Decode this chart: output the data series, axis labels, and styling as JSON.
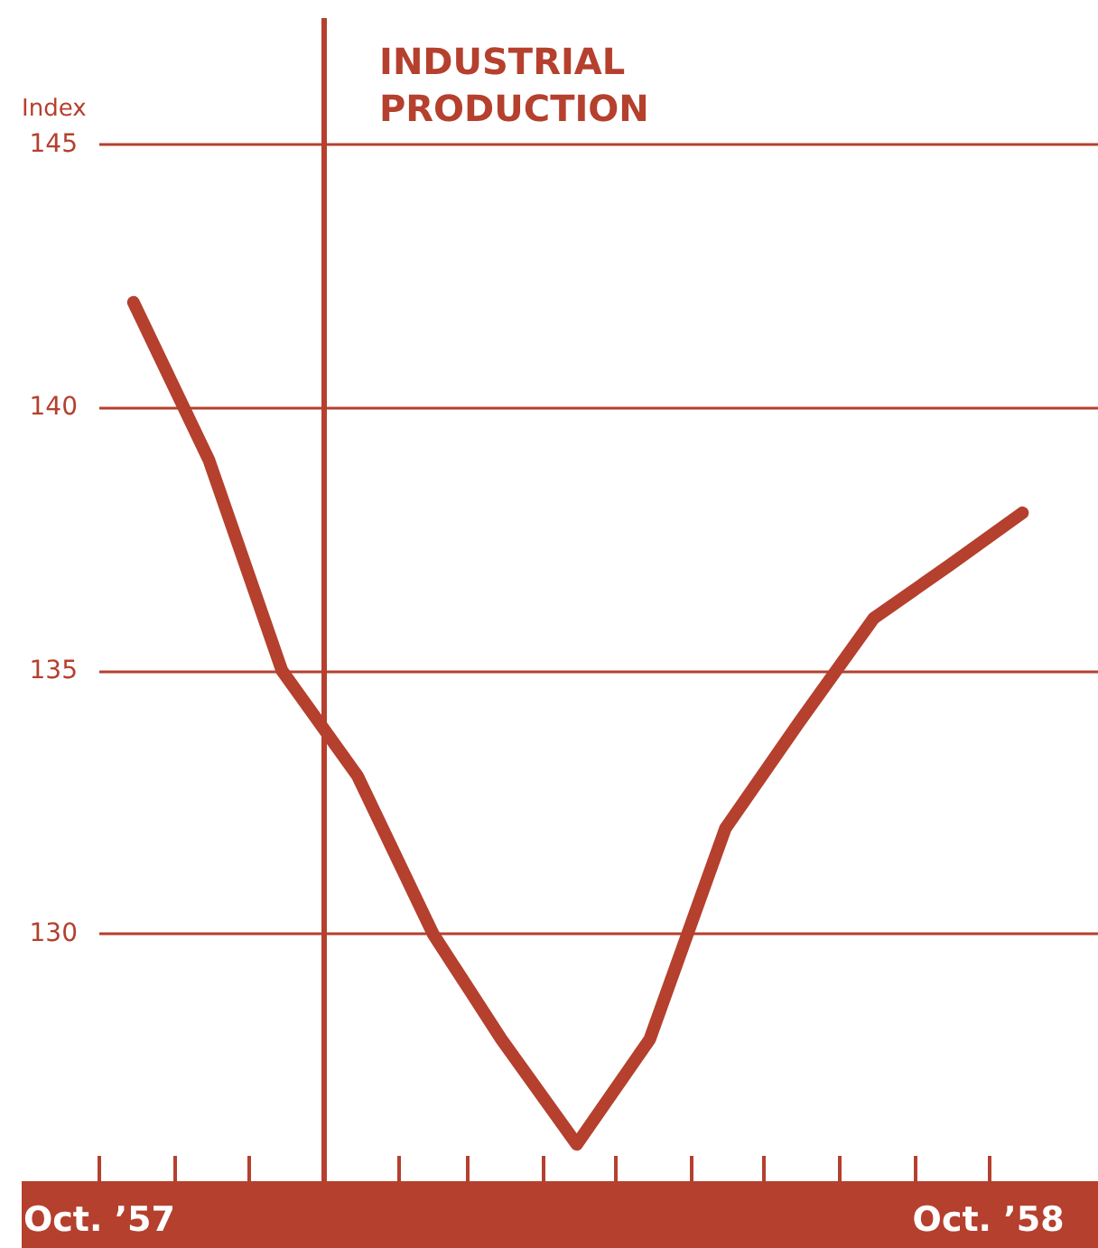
{
  "chart_data": {
    "type": "line",
    "title": "INDUSTRIAL PRODUCTION",
    "ylabel": "Index",
    "x": [
      "1957-10-15",
      "1957-11-15",
      "1957-12-15",
      "1958-01-15",
      "1958-02-15",
      "1958-03-15",
      "1958-04-15",
      "1958-05-15",
      "1958-06-15",
      "1958-07-15",
      "1958-08-15",
      "1958-09-15",
      "1958-10-15"
    ],
    "series": [
      {
        "color": "#b5402e",
        "values": [
          142,
          139,
          135,
          133,
          130,
          128,
          126,
          128,
          132,
          134,
          136,
          137,
          138
        ]
      }
    ],
    "xlim": [
      "1957-10-01",
      "1958-11-15"
    ],
    "xticks": [
      {
        "value": "1957-10-01",
        "label": "Oct. ’57"
      },
      {
        "value": "1957-11-01",
        "label": null
      },
      {
        "value": "1957-12-01",
        "label": null
      },
      {
        "value": "1958-01-01",
        "label": null
      },
      {
        "value": "1958-02-01",
        "label": null
      },
      {
        "value": "1958-03-01",
        "label": null
      },
      {
        "value": "1958-04-01",
        "label": null
      },
      {
        "value": "1958-05-01",
        "label": null
      },
      {
        "value": "1958-06-01",
        "label": null
      },
      {
        "value": "1958-07-01",
        "label": null
      },
      {
        "value": "1958-08-01",
        "label": null
      },
      {
        "value": "1958-09-01",
        "label": null
      },
      {
        "value": "1958-10-01",
        "label": "Oct. ’58"
      }
    ],
    "ylim": [
      125.3,
      147.4
    ],
    "yticks": [
      130,
      135,
      140,
      145
    ],
    "ref_lines": [
      {
        "axis": "x",
        "value": "1958-01-01",
        "color": "#b5402e",
        "line_style": "solid"
      }
    ],
    "grid": "y",
    "marker": "none",
    "line_style": "solid"
  }
}
